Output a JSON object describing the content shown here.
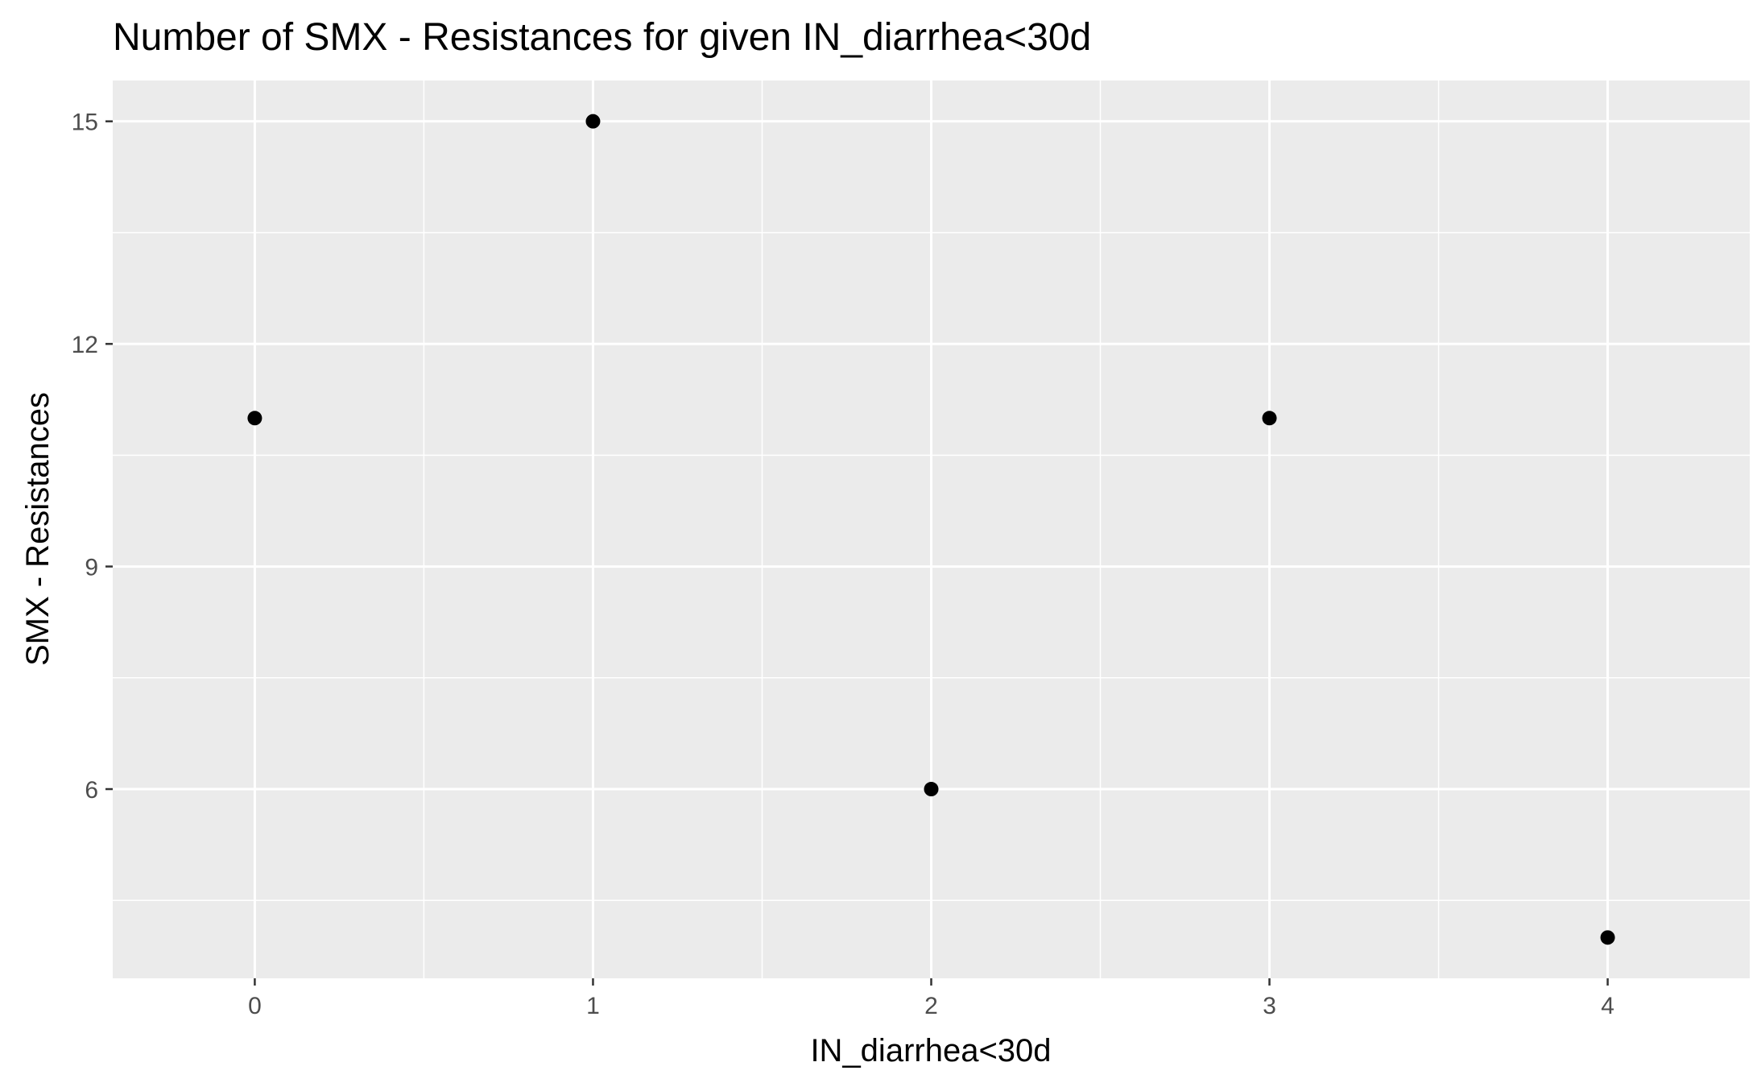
{
  "chart_data": {
    "type": "scatter",
    "title": "Number of SMX - Resistances for given IN_diarrhea<30d",
    "xlabel": "IN_diarrhea<30d",
    "ylabel": "SMX - Resistances",
    "x": [
      0,
      1,
      2,
      3,
      4
    ],
    "y": [
      11,
      15,
      6,
      11,
      4
    ],
    "x_ticks": [
      "0",
      "1",
      "2",
      "3",
      "4"
    ],
    "y_ticks": [
      "6",
      "9",
      "12",
      "15"
    ],
    "xlim": [
      -0.42,
      4.42
    ],
    "ylim": [
      3.45,
      15.55
    ],
    "grid": true,
    "colors": {
      "panel": "#ebebeb",
      "grid": "#ffffff",
      "point": "#000000",
      "tick_text": "#4d4d4d"
    }
  }
}
